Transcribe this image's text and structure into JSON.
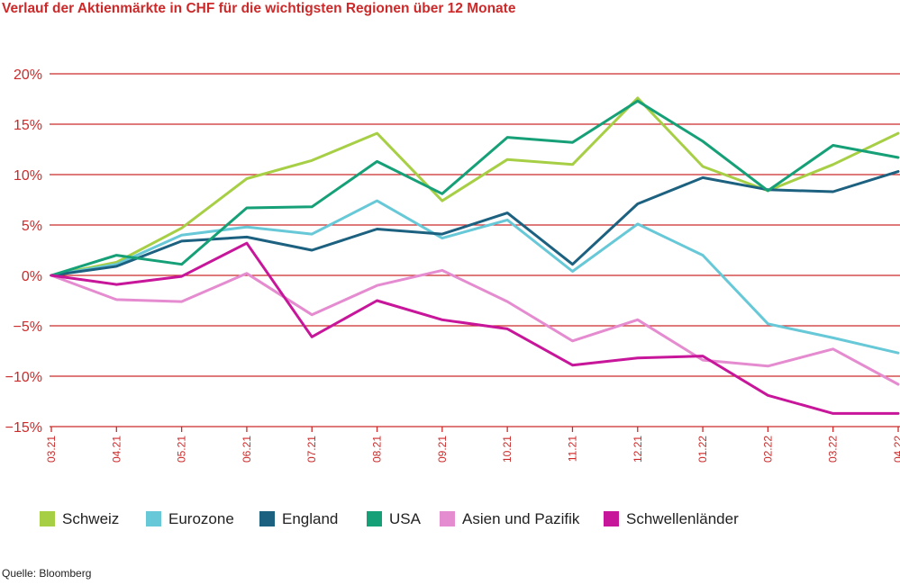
{
  "title": "Verlauf der Aktienmärkte in CHF für die wichtigsten Regionen über 12 Monate",
  "source": "Quelle: Bloomberg",
  "chart_data": {
    "type": "line",
    "title": "Verlauf der Aktienmärkte in CHF für die wichtigsten Regionen über 12 Monate",
    "x": [
      "03.21",
      "04.21",
      "05.21",
      "06.21",
      "07.21",
      "08.21",
      "09.21",
      "10.21",
      "11.21",
      "12.21",
      "01.22",
      "02.22",
      "03.22",
      "04.22"
    ],
    "ylim": [
      -15,
      20
    ],
    "yticks": [
      20,
      15,
      10,
      5,
      0,
      -5,
      -10,
      -15
    ],
    "ytick_labels": [
      "20%",
      "15%",
      "10%",
      "5%",
      "0%",
      "−5%",
      "−10%",
      "−15%"
    ],
    "grid": true,
    "legend_position": "bottom",
    "series": [
      {
        "name": "Schweiz",
        "color": "#a7cf45",
        "values": [
          0,
          1.3,
          4.7,
          9.6,
          11.4,
          14.1,
          7.4,
          11.5,
          11.0,
          17.6,
          10.8,
          8.4,
          11.0,
          14.1
        ]
      },
      {
        "name": "Eurozone",
        "color": "#67c8d7",
        "values": [
          0,
          1.1,
          4.0,
          4.8,
          4.1,
          7.4,
          3.7,
          5.5,
          0.4,
          5.1,
          2.0,
          -4.8,
          -6.2,
          -7.7
        ]
      },
      {
        "name": "England",
        "color": "#1d6180",
        "values": [
          0,
          0.9,
          3.4,
          3.8,
          2.5,
          4.6,
          4.1,
          6.2,
          1.1,
          7.1,
          9.7,
          8.5,
          8.3,
          10.3
        ]
      },
      {
        "name": "USA",
        "color": "#16a077",
        "values": [
          0,
          2.0,
          1.1,
          6.7,
          6.8,
          11.3,
          8.1,
          13.7,
          13.2,
          17.3,
          13.3,
          8.4,
          12.9,
          11.7
        ]
      },
      {
        "name": "Asien und Pazifik",
        "color": "#e58bd0",
        "values": [
          0,
          -2.4,
          -2.6,
          0.2,
          -3.9,
          -1.0,
          0.5,
          -2.6,
          -6.5,
          -4.4,
          -8.4,
          -9.0,
          -7.3,
          -10.8
        ]
      },
      {
        "name": "Schwellenländer",
        "color": "#c7169a",
        "values": [
          0,
          -0.9,
          -0.1,
          3.2,
          -6.1,
          -2.5,
          -4.4,
          -5.3,
          -8.9,
          -8.2,
          -8.0,
          -11.9,
          -13.7,
          -13.7
        ]
      }
    ]
  }
}
